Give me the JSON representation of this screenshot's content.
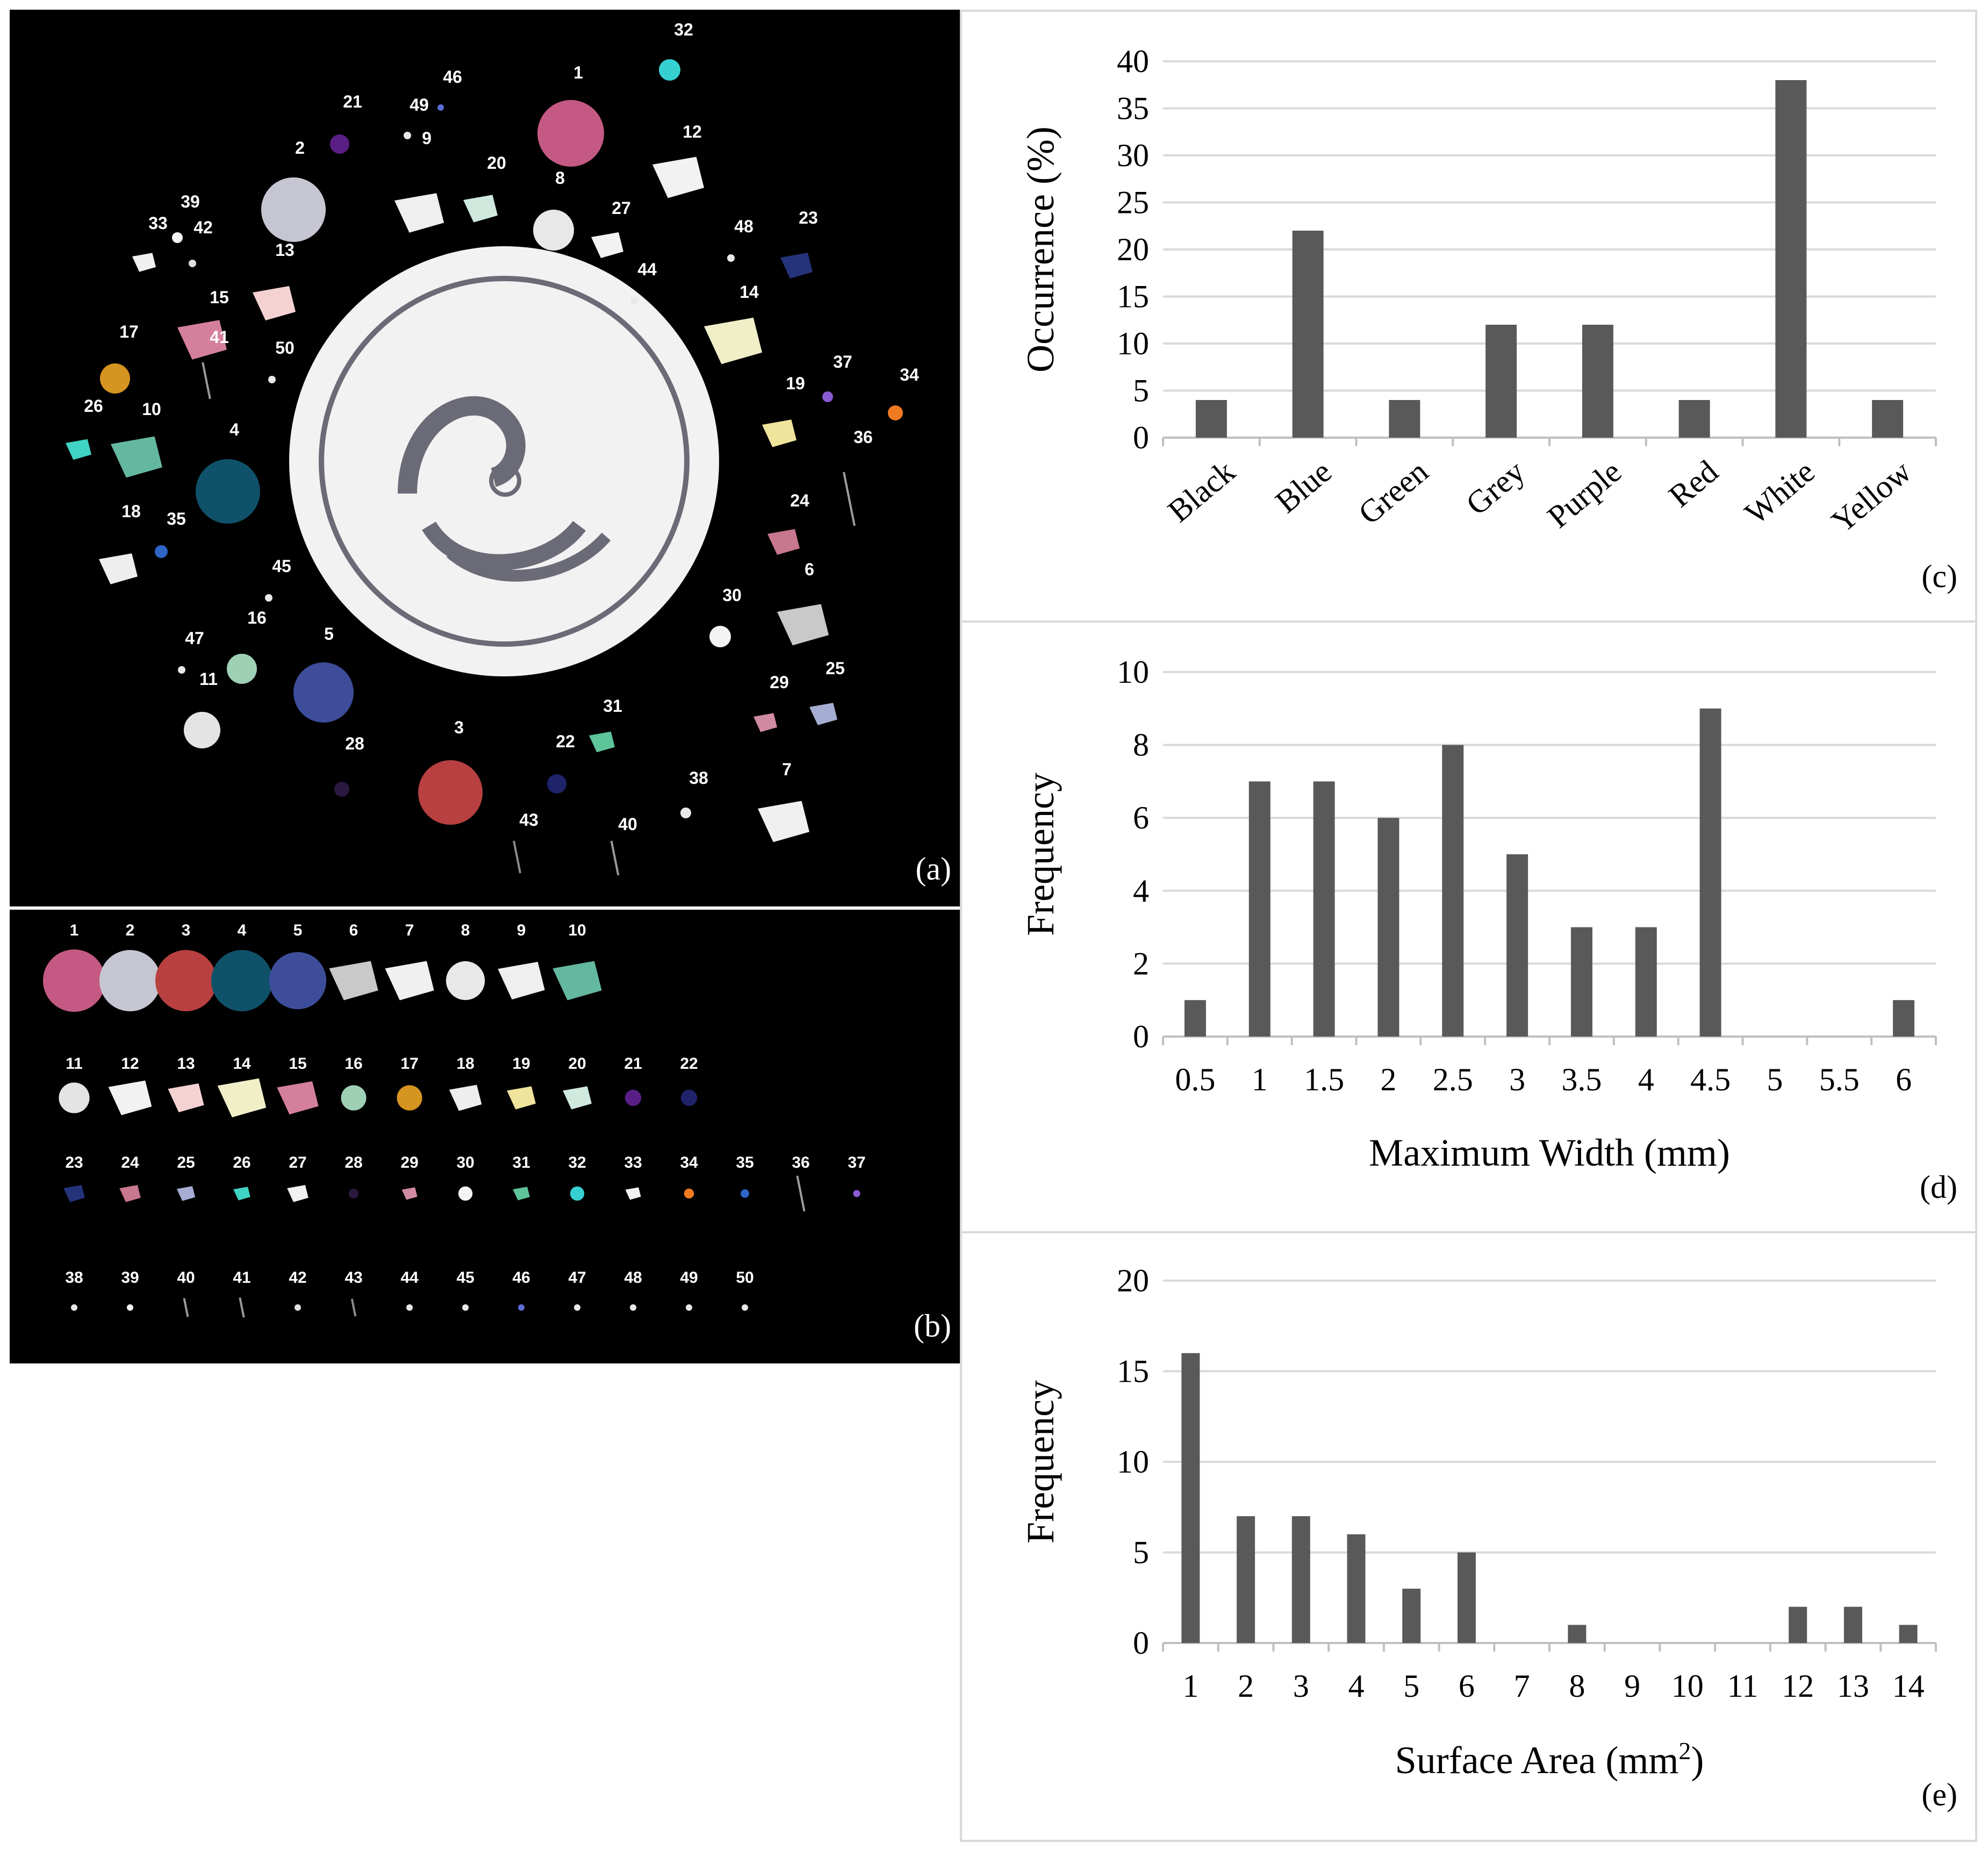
{
  "panels": {
    "a": {
      "letter": "(a)"
    },
    "b": {
      "letter": "(b)"
    }
  },
  "photo_a_items": [
    {
      "n": "1",
      "lx": 1058,
      "ly": 128,
      "kind": "gem",
      "cx": 1044,
      "cy": 230,
      "r": 62,
      "color": "#c45a83"
    },
    {
      "n": "2",
      "lx": 540,
      "ly": 268,
      "kind": "gem",
      "cx": 528,
      "cy": 372,
      "r": 60,
      "color": "#c6c6d2"
    },
    {
      "n": "3",
      "lx": 836,
      "ly": 1346,
      "kind": "gem",
      "cx": 820,
      "cy": 1456,
      "r": 60,
      "color": "#b84040"
    },
    {
      "n": "4",
      "lx": 418,
      "ly": 792,
      "kind": "gem",
      "cx": 406,
      "cy": 896,
      "r": 60,
      "color": "#10516a"
    },
    {
      "n": "5",
      "lx": 594,
      "ly": 1172,
      "kind": "gem",
      "cx": 584,
      "cy": 1270,
      "r": 56,
      "color": "#3d4d9a"
    },
    {
      "n": "6",
      "lx": 1488,
      "ly": 1052,
      "kind": "shard",
      "cx": 1476,
      "cy": 1144,
      "r": 48,
      "color": "#c9c9c9"
    },
    {
      "n": "7",
      "lx": 1446,
      "ly": 1424,
      "kind": "shard",
      "cx": 1440,
      "cy": 1510,
      "r": 48,
      "color": "#f0f0f0"
    },
    {
      "n": "8",
      "lx": 1024,
      "ly": 324,
      "kind": "gem",
      "cx": 1012,
      "cy": 410,
      "r": 38,
      "color": "#e8e8e8"
    },
    {
      "n": "9",
      "lx": 776,
      "ly": 250,
      "kind": "shard",
      "cx": 762,
      "cy": 378,
      "r": 46,
      "color": "#efefef"
    },
    {
      "n": "10",
      "lx": 264,
      "ly": 754,
      "kind": "shard",
      "cx": 236,
      "cy": 832,
      "r": 48,
      "color": "#65b8a0"
    },
    {
      "n": "11",
      "lx": 370,
      "ly": 1256,
      "kind": "gem",
      "cx": 358,
      "cy": 1340,
      "r": 34,
      "color": "#e4e4e4"
    },
    {
      "n": "12",
      "lx": 1270,
      "ly": 238,
      "kind": "shard",
      "cx": 1244,
      "cy": 312,
      "r": 48,
      "color": "#f2f2f2"
    },
    {
      "n": "13",
      "lx": 512,
      "ly": 458,
      "kind": "shard",
      "cx": 492,
      "cy": 546,
      "r": 40,
      "color": "#f5d2d2"
    },
    {
      "n": "14",
      "lx": 1376,
      "ly": 536,
      "kind": "shard",
      "cx": 1346,
      "cy": 616,
      "r": 54,
      "color": "#f0efc8"
    },
    {
      "n": "15",
      "lx": 390,
      "ly": 546,
      "kind": "shard",
      "cx": 358,
      "cy": 614,
      "r": 46,
      "color": "#d4809c"
    },
    {
      "n": "16",
      "lx": 460,
      "ly": 1142,
      "kind": "gem",
      "cx": 432,
      "cy": 1226,
      "r": 28,
      "color": "#9ed0b6"
    },
    {
      "n": "17",
      "lx": 222,
      "ly": 610,
      "kind": "gem",
      "cx": 196,
      "cy": 686,
      "r": 28,
      "color": "#d69420"
    },
    {
      "n": "18",
      "lx": 226,
      "ly": 944,
      "kind": "shard",
      "cx": 202,
      "cy": 1040,
      "r": 36,
      "color": "#eeeeee"
    },
    {
      "n": "19",
      "lx": 1462,
      "ly": 706,
      "kind": "shard",
      "cx": 1432,
      "cy": 788,
      "r": 32,
      "color": "#f0e39c"
    },
    {
      "n": "20",
      "lx": 906,
      "ly": 296,
      "kind": "shard",
      "cx": 876,
      "cy": 370,
      "r": 32,
      "color": "#cfe9df"
    },
    {
      "n": "21",
      "lx": 638,
      "ly": 182,
      "kind": "gem",
      "cx": 614,
      "cy": 250,
      "r": 18,
      "color": "#5a1f86"
    },
    {
      "n": "22",
      "lx": 1034,
      "ly": 1372,
      "kind": "gem",
      "cx": 1018,
      "cy": 1440,
      "r": 18,
      "color": "#1e236a"
    },
    {
      "n": "23",
      "lx": 1486,
      "ly": 398,
      "kind": "shard",
      "cx": 1464,
      "cy": 476,
      "r": 30,
      "color": "#25337a"
    },
    {
      "n": "24",
      "lx": 1470,
      "ly": 924,
      "kind": "shard",
      "cx": 1440,
      "cy": 990,
      "r": 30,
      "color": "#c7778e"
    },
    {
      "n": "25",
      "lx": 1536,
      "ly": 1236,
      "kind": "shard",
      "cx": 1514,
      "cy": 1310,
      "r": 26,
      "color": "#a5aed2"
    },
    {
      "n": "26",
      "lx": 156,
      "ly": 748,
      "kind": "shard",
      "cx": 128,
      "cy": 818,
      "r": 24,
      "color": "#3fd4c4"
    },
    {
      "n": "27",
      "lx": 1138,
      "ly": 380,
      "kind": "shard",
      "cx": 1112,
      "cy": 438,
      "r": 30,
      "color": "#f2f2f2"
    },
    {
      "n": "28",
      "lx": 642,
      "ly": 1376,
      "kind": "gem",
      "cx": 618,
      "cy": 1450,
      "r": 14,
      "color": "#2a1840"
    },
    {
      "n": "29",
      "lx": 1432,
      "ly": 1262,
      "kind": "shard",
      "cx": 1406,
      "cy": 1326,
      "r": 22,
      "color": "#d08aa2"
    },
    {
      "n": "30",
      "lx": 1344,
      "ly": 1100,
      "kind": "gem",
      "cx": 1322,
      "cy": 1166,
      "r": 20,
      "color": "#f4f4f4"
    },
    {
      "n": "31",
      "lx": 1122,
      "ly": 1306,
      "kind": "shard",
      "cx": 1102,
      "cy": 1362,
      "r": 24,
      "color": "#5ec49a"
    },
    {
      "n": "32",
      "lx": 1254,
      "ly": 48,
      "kind": "gem",
      "cx": 1228,
      "cy": 112,
      "r": 20,
      "color": "#36d0d0"
    },
    {
      "n": "33",
      "lx": 276,
      "ly": 408,
      "kind": "shard",
      "cx": 250,
      "cy": 470,
      "r": 22,
      "color": "#f0f0f0"
    },
    {
      "n": "34",
      "lx": 1674,
      "ly": 690,
      "kind": "gem",
      "cx": 1648,
      "cy": 750,
      "r": 14,
      "color": "#f07a22"
    },
    {
      "n": "35",
      "lx": 310,
      "ly": 958,
      "kind": "gem",
      "cx": 282,
      "cy": 1008,
      "r": 12,
      "color": "#2e66c8"
    },
    {
      "n": "36",
      "lx": 1588,
      "ly": 806,
      "kind": "line",
      "cx": 1562,
      "cy": 910,
      "r": 50,
      "color": "#9c9c9c"
    },
    {
      "n": "37",
      "lx": 1550,
      "ly": 666,
      "kind": "gem",
      "cx": 1522,
      "cy": 720,
      "r": 10,
      "color": "#8a5ad0"
    },
    {
      "n": "38",
      "lx": 1282,
      "ly": 1440,
      "kind": "gem",
      "cx": 1258,
      "cy": 1494,
      "r": 10,
      "color": "#e8e8e8"
    },
    {
      "n": "39",
      "lx": 336,
      "ly": 368,
      "kind": "gem",
      "cx": 312,
      "cy": 424,
      "r": 10,
      "color": "#f4f4f4"
    },
    {
      "n": "40",
      "lx": 1150,
      "ly": 1526,
      "kind": "line",
      "cx": 1126,
      "cy": 1578,
      "r": 32,
      "color": "#9a9a9a"
    },
    {
      "n": "41",
      "lx": 390,
      "ly": 620,
      "kind": "line",
      "cx": 366,
      "cy": 690,
      "r": 34,
      "color": "#9a9a9a"
    },
    {
      "n": "42",
      "lx": 360,
      "ly": 416,
      "kind": "gem",
      "cx": 340,
      "cy": 472,
      "r": 7,
      "color": "#e0e0e0"
    },
    {
      "n": "43",
      "lx": 966,
      "ly": 1518,
      "kind": "line",
      "cx": 944,
      "cy": 1576,
      "r": 30,
      "color": "#8a8a8a"
    },
    {
      "n": "44",
      "lx": 1186,
      "ly": 494,
      "kind": "gem",
      "cx": 1162,
      "cy": 542,
      "r": 7,
      "color": "#e8e8e8"
    },
    {
      "n": "45",
      "lx": 506,
      "ly": 1046,
      "kind": "gem",
      "cx": 482,
      "cy": 1094,
      "r": 7,
      "color": "#e8e8e8"
    },
    {
      "n": "46",
      "lx": 824,
      "ly": 136,
      "kind": "gem",
      "cx": 802,
      "cy": 182,
      "r": 6,
      "color": "#5c6cd4"
    },
    {
      "n": "47",
      "lx": 344,
      "ly": 1180,
      "kind": "gem",
      "cx": 320,
      "cy": 1228,
      "r": 7,
      "color": "#e8e8e8"
    },
    {
      "n": "48",
      "lx": 1366,
      "ly": 414,
      "kind": "gem",
      "cx": 1342,
      "cy": 462,
      "r": 7,
      "color": "#e8e8e8"
    },
    {
      "n": "49",
      "lx": 762,
      "ly": 188,
      "kind": "gem",
      "cx": 740,
      "cy": 234,
      "r": 7,
      "color": "#e8e8e8"
    },
    {
      "n": "50",
      "lx": 512,
      "ly": 640,
      "kind": "gem",
      "cx": 488,
      "cy": 688,
      "r": 7,
      "color": "#e8e8e8"
    }
  ],
  "photo_b_rows": [
    [
      "1",
      "2",
      "3",
      "4",
      "5",
      "6",
      "7",
      "8",
      "9",
      "10"
    ],
    [
      "11",
      "12",
      "13",
      "14",
      "15",
      "16",
      "17",
      "18",
      "19",
      "20",
      "21",
      "22"
    ],
    [
      "23",
      "24",
      "25",
      "26",
      "27",
      "28",
      "29",
      "30",
      "31",
      "32",
      "33",
      "34",
      "35",
      "36",
      "37"
    ],
    [
      "38",
      "39",
      "40",
      "41",
      "42",
      "43",
      "44",
      "45",
      "46",
      "47",
      "48",
      "49",
      "50"
    ]
  ],
  "chart_data": [
    {
      "type": "bar",
      "panel": "(c)",
      "categories": [
        "Black",
        "Blue",
        "Green",
        "Grey",
        "Purple",
        "Red",
        "White",
        "Yellow"
      ],
      "values": [
        4,
        22,
        4,
        12,
        12,
        4,
        38,
        4
      ],
      "ylabel": "Occurrence (%)",
      "xlabel": "",
      "ylim": [
        0,
        40
      ],
      "yticks": [
        "0",
        "5",
        "10",
        "15",
        "20",
        "25",
        "30",
        "35",
        "40"
      ],
      "grid": true,
      "bar_color": "#595959"
    },
    {
      "type": "bar",
      "panel": "(d)",
      "categories": [
        "0.5",
        "1",
        "1.5",
        "2",
        "2.5",
        "3",
        "3.5",
        "4",
        "4.5",
        "5",
        "5.5",
        "6"
      ],
      "values": [
        1,
        7,
        7,
        6,
        8,
        5,
        3,
        3,
        9,
        0,
        0,
        1
      ],
      "ylabel": "Frequency",
      "xlabel": "Maximum Width (mm)",
      "ylim": [
        0,
        10
      ],
      "yticks": [
        "0",
        "2",
        "4",
        "6",
        "8",
        "10"
      ],
      "grid": true,
      "bar_color": "#595959"
    },
    {
      "type": "bar",
      "panel": "(e)",
      "categories": [
        "1",
        "2",
        "3",
        "4",
        "5",
        "6",
        "7",
        "8",
        "9",
        "10",
        "11",
        "12",
        "13",
        "14"
      ],
      "values": [
        16,
        7,
        7,
        6,
        3,
        5,
        0,
        1,
        0,
        0,
        0,
        2,
        2,
        1
      ],
      "ylabel": "Frequency",
      "xlabel": "Surface Area (mm",
      "xlabel_sup": "2",
      "xlabel_end": ")",
      "ylim": [
        0,
        20
      ],
      "yticks": [
        "0",
        "5",
        "10",
        "15",
        "20"
      ],
      "grid": true,
      "bar_color": "#595959"
    }
  ]
}
